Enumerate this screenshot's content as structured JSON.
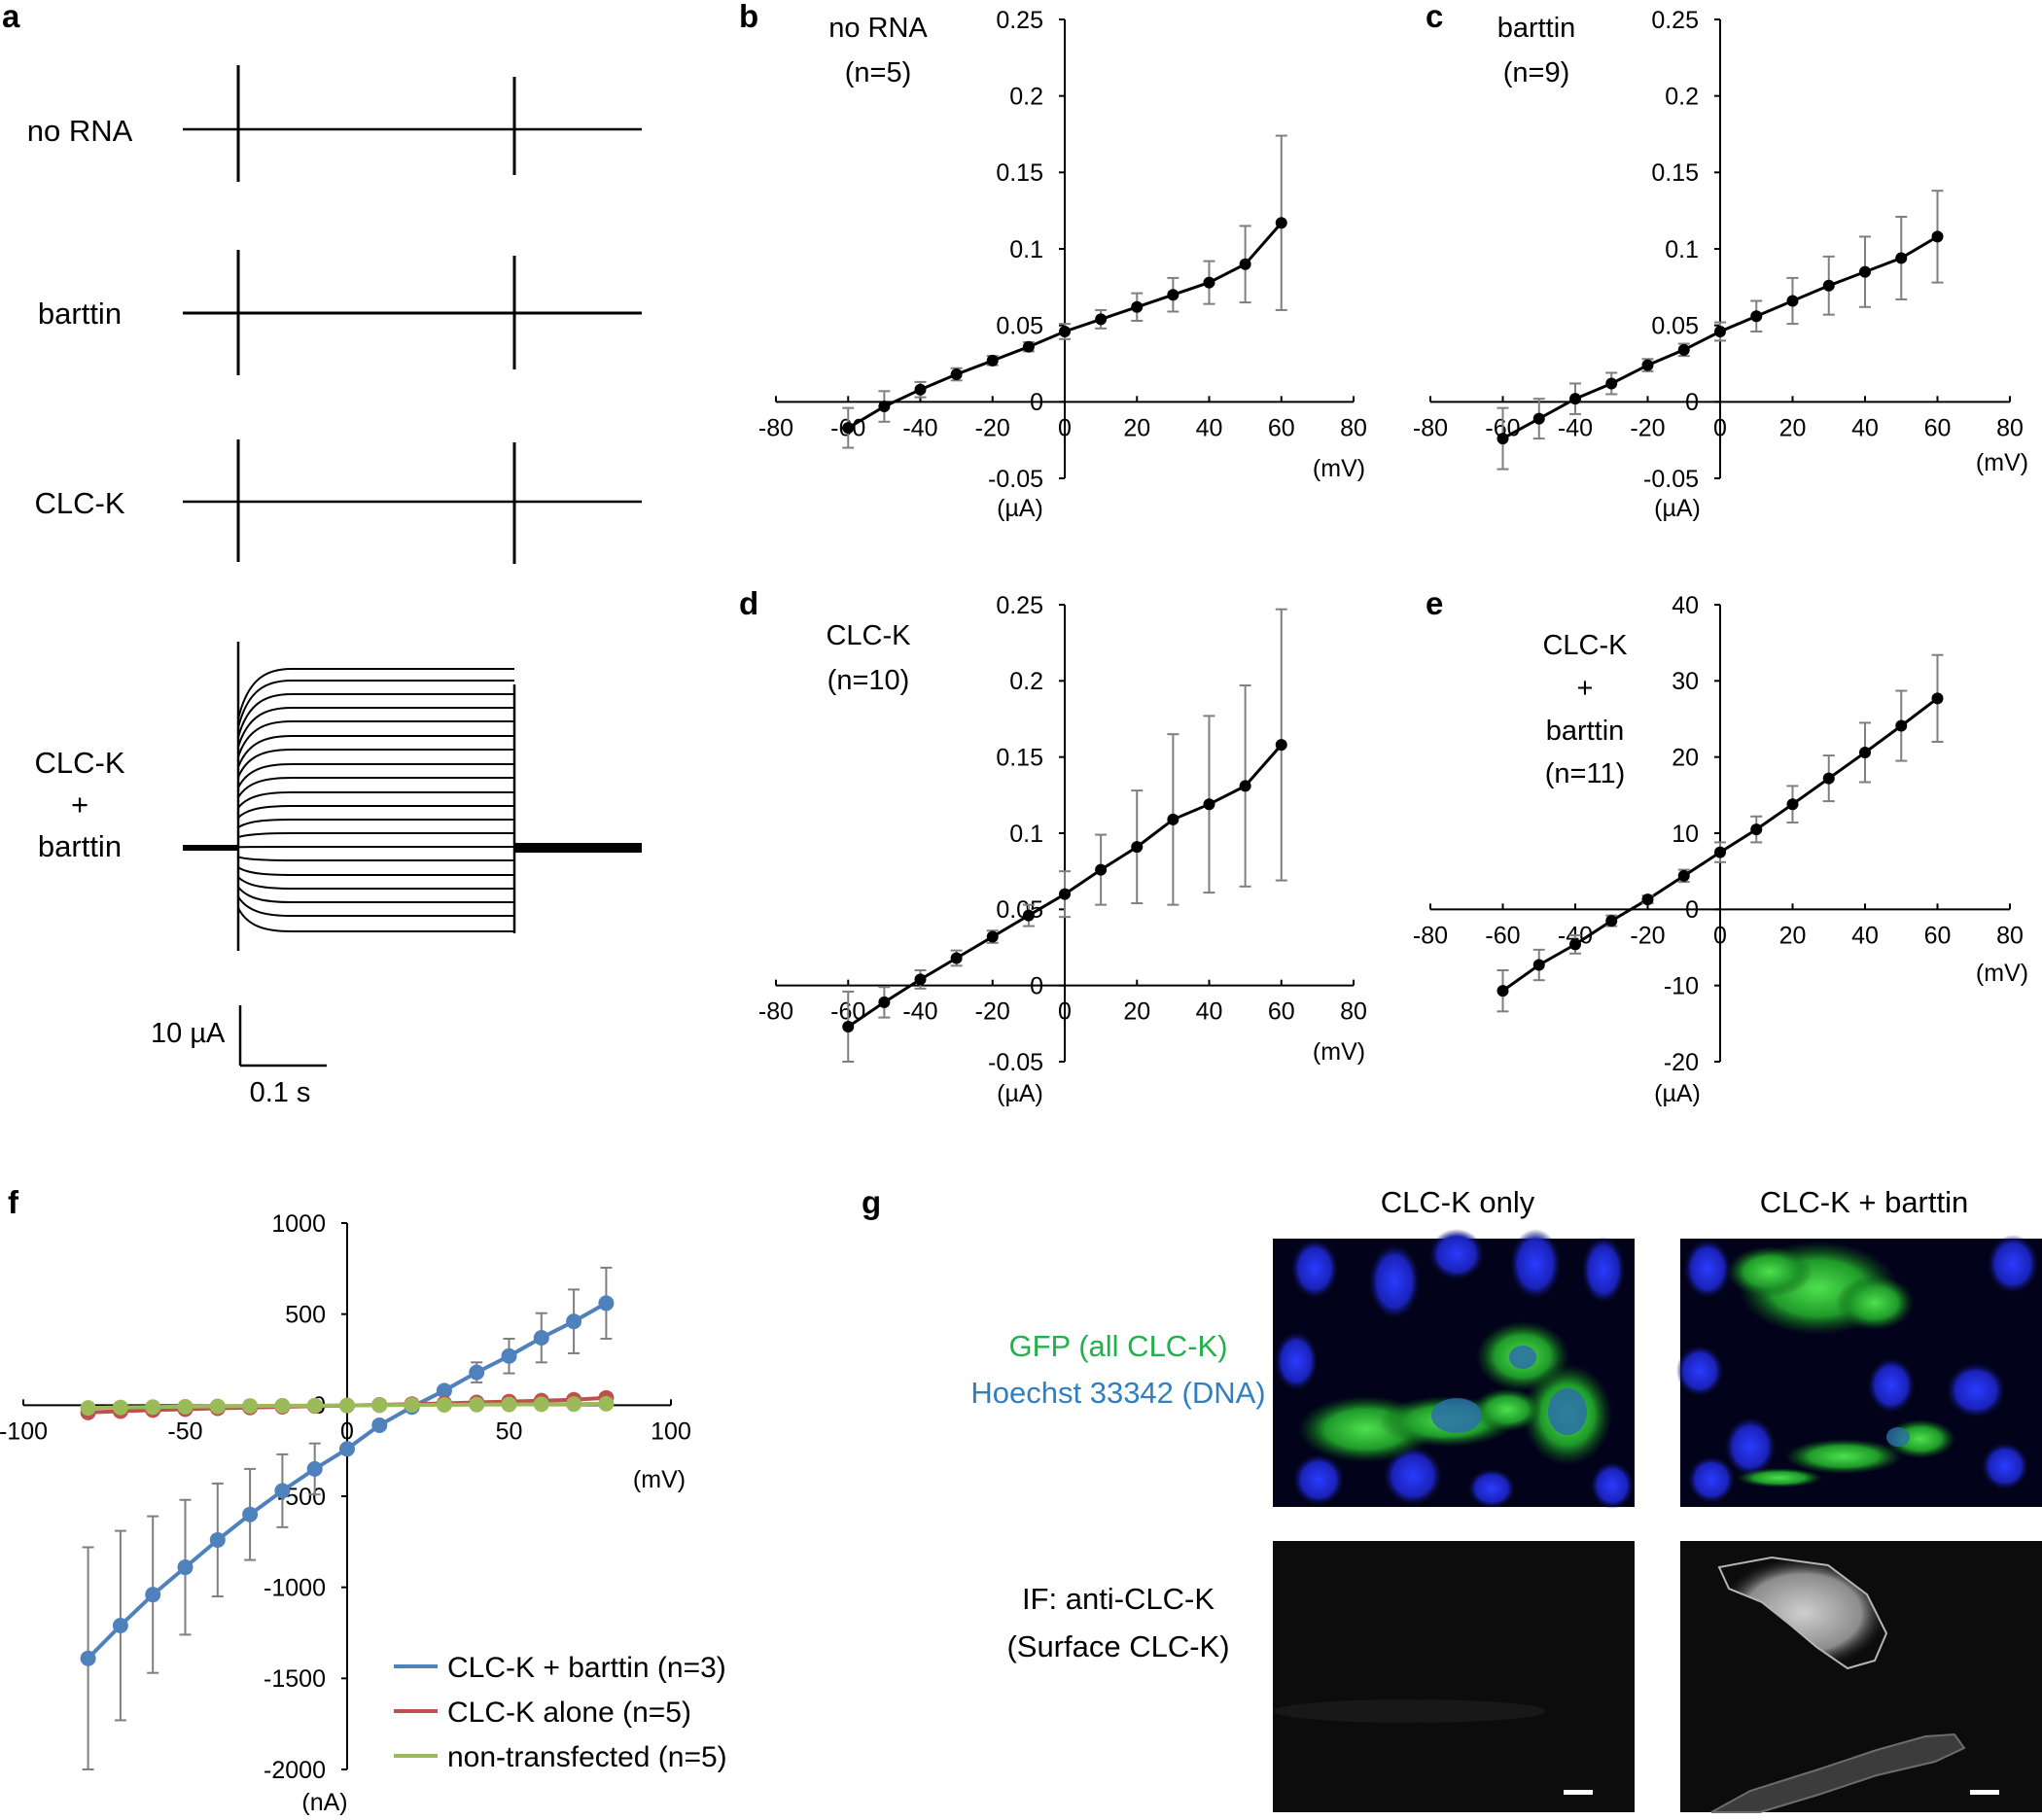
{
  "panel_letters": [
    "a",
    "b",
    "c",
    "d",
    "e",
    "f",
    "g"
  ],
  "panel_a": {
    "trace_labels": [
      "no RNA",
      "barttin",
      "CLC-K",
      "CLC-K\n+\nbarttin"
    ],
    "scale_current": "10 µA",
    "scale_time": "0.1 s"
  },
  "chart_data": [
    {
      "id": "b",
      "type": "line",
      "title": "no RNA",
      "subtitle": "(n=5)",
      "xlabel": "(mV)",
      "ylabel": "(µA)",
      "xlim": [
        -80,
        80
      ],
      "ylim": [
        -0.05,
        0.25
      ],
      "xticks": [
        -80,
        -60,
        -40,
        -20,
        0,
        20,
        40,
        60,
        80
      ],
      "yticks": [
        -0.05,
        0,
        0.05,
        0.1,
        0.15,
        0.2,
        0.25
      ],
      "ytick_labels": [
        "-0.05",
        "0",
        "0.05",
        "0.1",
        "0.15",
        "0.2",
        "0.25"
      ],
      "x": [
        -60,
        -50,
        -40,
        -30,
        -20,
        -10,
        0,
        10,
        20,
        30,
        40,
        50,
        60
      ],
      "values": [
        -0.017,
        -0.003,
        0.008,
        0.018,
        0.027,
        0.036,
        0.046,
        0.054,
        0.062,
        0.07,
        0.078,
        0.09,
        0.117
      ],
      "errors": [
        0.013,
        0.01,
        0.005,
        0.004,
        0.003,
        0.003,
        0.005,
        0.006,
        0.009,
        0.011,
        0.014,
        0.025,
        0.057
      ]
    },
    {
      "id": "c",
      "type": "line",
      "title": "barttin",
      "subtitle": "(n=9)",
      "xlabel": "(mV)",
      "ylabel": "(µA)",
      "xlim": [
        -80,
        80
      ],
      "ylim": [
        -0.05,
        0.25
      ],
      "xticks": [
        -80,
        -60,
        -40,
        -20,
        0,
        20,
        40,
        60,
        80
      ],
      "yticks": [
        -0.05,
        0,
        0.05,
        0.1,
        0.15,
        0.2,
        0.25
      ],
      "ytick_labels": [
        "-0.05",
        "0",
        "0.05",
        "0.1",
        "0.15",
        "0.2",
        "0.25"
      ],
      "x": [
        -60,
        -50,
        -40,
        -30,
        -20,
        -10,
        0,
        10,
        20,
        30,
        40,
        50,
        60
      ],
      "values": [
        -0.024,
        -0.011,
        0.002,
        0.012,
        0.024,
        0.034,
        0.046,
        0.056,
        0.066,
        0.076,
        0.085,
        0.094,
        0.108
      ],
      "errors": [
        0.02,
        0.013,
        0.01,
        0.007,
        0.004,
        0.004,
        0.006,
        0.01,
        0.015,
        0.019,
        0.023,
        0.027,
        0.03
      ]
    },
    {
      "id": "d",
      "type": "line",
      "title": "CLC-K",
      "subtitle": "(n=10)",
      "xlabel": "(mV)",
      "ylabel": "(µA)",
      "xlim": [
        -80,
        80
      ],
      "ylim": [
        -0.05,
        0.25
      ],
      "xticks": [
        -80,
        -60,
        -40,
        -20,
        0,
        20,
        40,
        60,
        80
      ],
      "yticks": [
        -0.05,
        0,
        0.05,
        0.1,
        0.15,
        0.2,
        0.25
      ],
      "ytick_labels": [
        "-0.05",
        "0",
        "0.05",
        "0.1",
        "0.15",
        "0.2",
        "0.25"
      ],
      "x": [
        -60,
        -50,
        -40,
        -30,
        -20,
        -10,
        0,
        10,
        20,
        30,
        40,
        50,
        60
      ],
      "values": [
        -0.027,
        -0.011,
        0.004,
        0.018,
        0.032,
        0.046,
        0.06,
        0.076,
        0.091,
        0.109,
        0.119,
        0.131,
        0.158
      ],
      "errors": [
        0.023,
        0.01,
        0.006,
        0.005,
        0.004,
        0.007,
        0.015,
        0.023,
        0.037,
        0.056,
        0.058,
        0.066,
        0.089
      ]
    },
    {
      "id": "e",
      "type": "line",
      "title": "CLC-K\n+\nbarttin\n(n=11)",
      "subtitle": "",
      "xlabel": "(mV)",
      "ylabel": "(µA)",
      "xlim": [
        -80,
        80
      ],
      "ylim": [
        -20,
        40
      ],
      "xticks": [
        -80,
        -60,
        -40,
        -20,
        0,
        20,
        40,
        60,
        80
      ],
      "yticks": [
        -20,
        -10,
        0,
        10,
        20,
        30,
        40
      ],
      "ytick_labels": [
        "-20",
        "-10",
        "0",
        "10",
        "20",
        "30",
        "40"
      ],
      "x": [
        -60,
        -50,
        -40,
        -30,
        -20,
        -10,
        0,
        10,
        20,
        30,
        40,
        50,
        60
      ],
      "values": [
        -10.7,
        -7.3,
        -4.6,
        -1.5,
        1.3,
        4.4,
        7.5,
        10.5,
        13.8,
        17.2,
        20.6,
        24.1,
        27.7
      ],
      "errors": [
        2.7,
        2.0,
        1.2,
        0.7,
        0.5,
        0.8,
        1.3,
        1.7,
        2.4,
        3.0,
        3.9,
        4.6,
        5.7
      ]
    },
    {
      "id": "f",
      "type": "line",
      "title": "",
      "xlabel": "(mV)",
      "ylabel": "(nA)",
      "xlim": [
        -100,
        100
      ],
      "ylim": [
        -2000,
        1000
      ],
      "xticks": [
        -100,
        -50,
        0,
        50,
        100
      ],
      "yticks": [
        -2000,
        -1500,
        -1000,
        -500,
        0,
        500,
        1000
      ],
      "ytick_labels": [
        "-2000",
        "-1500",
        "-1000",
        "-500",
        "0",
        "500",
        "1000"
      ],
      "x": [
        -80,
        -70,
        -60,
        -50,
        -40,
        -30,
        -20,
        -10,
        0,
        10,
        20,
        30,
        40,
        50,
        60,
        70,
        80
      ],
      "series": [
        {
          "name": "CLC-K + barttin (n=3)",
          "color": "#4f81bd",
          "values": [
            -1390,
            -1210,
            -1040,
            -890,
            -740,
            -600,
            -470,
            -350,
            -240,
            -110,
            -10,
            80,
            180,
            270,
            370,
            460,
            560
          ],
          "errors": [
            610,
            520,
            430,
            370,
            310,
            250,
            200,
            140,
            0,
            0,
            0,
            0,
            55,
            95,
            135,
            175,
            195
          ]
        },
        {
          "name": "CLC-K alone (n=5)",
          "color": "#c0504d",
          "values": [
            -40,
            -33,
            -27,
            -22,
            -17,
            -13,
            -9,
            -5,
            -2,
            2,
            6,
            10,
            15,
            20,
            25,
            30,
            40
          ],
          "errors": [
            0,
            0,
            0,
            0,
            0,
            0,
            0,
            0,
            0,
            0,
            0,
            0,
            0,
            0,
            0,
            0,
            0
          ]
        },
        {
          "name": "non-transfected (n=5)",
          "color": "#9bbb59",
          "values": [
            -15,
            -12,
            -10,
            -8,
            -6,
            -4,
            -3,
            -2,
            -1,
            0,
            1,
            2,
            3,
            4,
            5,
            6,
            8
          ],
          "errors": [
            0,
            0,
            0,
            0,
            0,
            0,
            0,
            0,
            0,
            0,
            0,
            0,
            0,
            0,
            0,
            0,
            0
          ]
        }
      ]
    }
  ],
  "panel_g": {
    "col_headers": [
      "CLC-K only",
      "CLC-K + barttin"
    ],
    "row1_line1": "GFP (all CLC-K)",
    "row1_line2": "Hoechst 33342 (DNA)",
    "row1_color1": "#22b14c",
    "row1_color2": "#2f7fc1",
    "row2_line1": "IF: anti-CLC-K",
    "row2_line2": "(Surface CLC-K)"
  }
}
